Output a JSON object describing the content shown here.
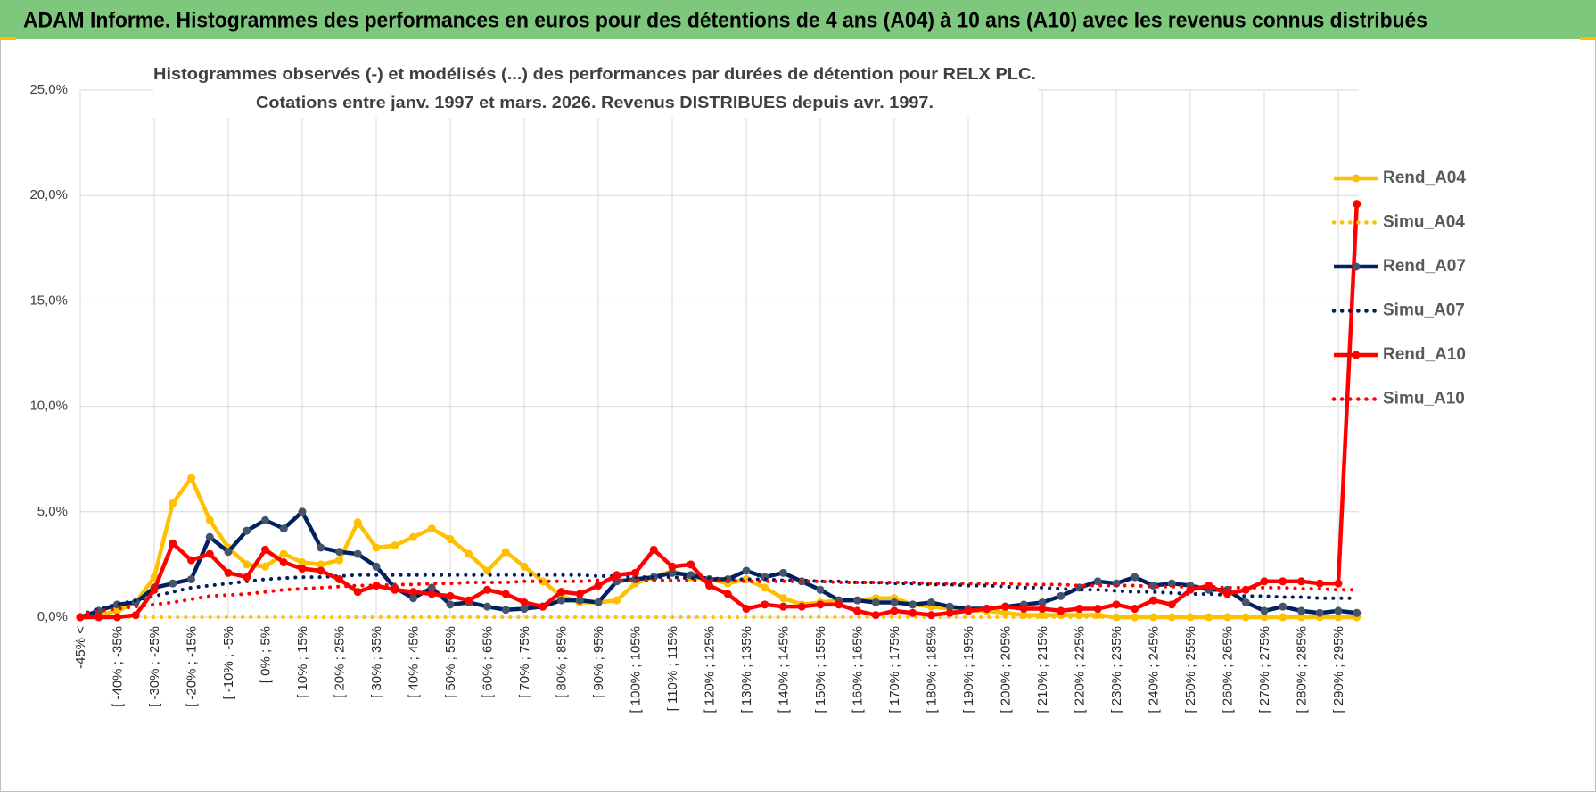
{
  "header": {
    "title": "ADAM Informe. Histogrammes des performances en euros pour des détentions de 4 ans (A04) à 10 ans (A10) avec les revenus connus distribués"
  },
  "chart_data": {
    "type": "line",
    "title": "Histogrammes observés (-) et modélisés (...) des performances par durées de détention pour RELX PLC.",
    "subtitle": "Cotations entre janv. 1997 et mars. 2026. Revenus DISTRIBUES depuis avr. 1997.",
    "categories": [
      "-45% <",
      null,
      "[ -40% ; -35%",
      null,
      "[ -30% ; -25%",
      null,
      "[ -20% ; -15%",
      null,
      "[ -10% ; -5%",
      null,
      "[ 0% ; 5%",
      null,
      "[ 10% ; 15%",
      null,
      "[ 20% ; 25%",
      null,
      "[ 30% ; 35%",
      null,
      "[ 40% ; 45%",
      null,
      "[ 50% ; 55%",
      null,
      "[ 60% ; 65%",
      null,
      "[ 70% ; 75%",
      null,
      "[ 80% ; 85%",
      null,
      "[ 90% ; 95%",
      null,
      "[ 100% ; 105%",
      null,
      "[ 110% ; 115%",
      null,
      "[ 120% ; 125%",
      null,
      "[ 130% ; 135%",
      null,
      "[ 140% ; 145%",
      null,
      "[ 150% ; 155%",
      null,
      "[ 160% ; 165%",
      null,
      "[ 170% ; 175%",
      null,
      "[ 180% ; 185%",
      null,
      "[ 190% ; 195%",
      null,
      "[ 200% ; 205%",
      null,
      "[ 210% ; 215%",
      null,
      "[ 220% ; 225%",
      null,
      "[ 230% ; 235%",
      null,
      "[ 240% ; 245%",
      null,
      "[ 250% ; 255%",
      null,
      "[ 260% ; 265%",
      null,
      "[ 270% ; 275%",
      null,
      "[ 280% ; 285%",
      null,
      "[ 290% ; 295%",
      null
    ],
    "series": [
      {
        "name": "Rend_A04",
        "color": "#ffc000",
        "style": "solid",
        "marker": true,
        "values": [
          0,
          0.1,
          0.3,
          0.7,
          1.9,
          5.4,
          6.6,
          4.6,
          3.3,
          2.5,
          2.4,
          3.0,
          2.6,
          2.5,
          2.7,
          4.5,
          3.3,
          3.4,
          3.8,
          4.2,
          3.7,
          3.0,
          2.2,
          3.1,
          2.4,
          1.7,
          1.0,
          0.7,
          0.7,
          0.8,
          1.6,
          1.9,
          2.2,
          1.9,
          1.8,
          1.6,
          1.8,
          1.4,
          0.9,
          0.6,
          0.7,
          0.8,
          0.8,
          0.9,
          0.9,
          0.6,
          0.5,
          0.4,
          0.3,
          0.3,
          0.2,
          0.1,
          0.1,
          0.1,
          0.1,
          0.1,
          0,
          0,
          0,
          0,
          0,
          0,
          0,
          0,
          0,
          0,
          0,
          0,
          0,
          0
        ]
      },
      {
        "name": "Simu_A04",
        "color": "#ffc000",
        "style": "dotted",
        "marker": false,
        "values": [
          0,
          0,
          0,
          0,
          0,
          0,
          0,
          0,
          0,
          0,
          0,
          0,
          0,
          0,
          0,
          0,
          0,
          0,
          0,
          0,
          0,
          0,
          0,
          0,
          0,
          0,
          0,
          0,
          0,
          0,
          0,
          0,
          0,
          0,
          0,
          0,
          0,
          0,
          0,
          0,
          0,
          0,
          0,
          0,
          0,
          0,
          0,
          0,
          0,
          0,
          0,
          0,
          0,
          0,
          0,
          0,
          0,
          0,
          0,
          0,
          0,
          0,
          0,
          0,
          0,
          0,
          0,
          0,
          0,
          0
        ]
      },
      {
        "name": "Rend_A07",
        "color": "#002060",
        "style": "solid",
        "marker": true,
        "values": [
          0,
          0.3,
          0.6,
          0.7,
          1.4,
          1.6,
          1.8,
          3.8,
          3.1,
          4.1,
          4.6,
          4.2,
          5.0,
          3.3,
          3.1,
          3.0,
          2.4,
          1.4,
          0.9,
          1.4,
          0.6,
          0.7,
          0.5,
          0.35,
          0.4,
          0.5,
          0.8,
          0.8,
          0.7,
          1.7,
          1.8,
          1.9,
          2.1,
          2.0,
          1.8,
          1.8,
          2.2,
          1.9,
          2.1,
          1.7,
          1.3,
          0.8,
          0.8,
          0.7,
          0.7,
          0.6,
          0.7,
          0.5,
          0.4,
          0.4,
          0.5,
          0.6,
          0.7,
          1.0,
          1.4,
          1.7,
          1.6,
          1.9,
          1.5,
          1.6,
          1.5,
          1.3,
          1.3,
          0.7,
          0.3,
          0.5,
          0.3,
          0.2,
          0.3,
          0.2
        ]
      },
      {
        "name": "Simu_A07",
        "color": "#002060",
        "style": "dotted",
        "marker": false,
        "values": [
          0.1,
          0.4,
          0.6,
          0.8,
          1.0,
          1.2,
          1.4,
          1.5,
          1.6,
          1.7,
          1.8,
          1.85,
          1.9,
          1.9,
          1.95,
          2.0,
          2.0,
          2.0,
          2.0,
          2.0,
          2.0,
          2.0,
          2.0,
          2.0,
          2.0,
          2.0,
          2.0,
          2.0,
          1.95,
          1.95,
          1.9,
          1.9,
          1.9,
          1.85,
          1.85,
          1.8,
          1.8,
          1.8,
          1.75,
          1.75,
          1.7,
          1.7,
          1.65,
          1.65,
          1.6,
          1.6,
          1.55,
          1.55,
          1.5,
          1.5,
          1.45,
          1.4,
          1.4,
          1.35,
          1.3,
          1.3,
          1.25,
          1.2,
          1.2,
          1.15,
          1.1,
          1.1,
          1.05,
          1.0,
          1.0,
          0.95,
          0.95,
          0.9,
          0.9,
          0.9
        ]
      },
      {
        "name": "Rend_A10",
        "color": "#ff0000",
        "style": "solid",
        "marker": true,
        "values": [
          0,
          0,
          0,
          0.1,
          1.3,
          3.5,
          2.7,
          3.0,
          2.1,
          1.9,
          3.2,
          2.6,
          2.3,
          2.2,
          1.8,
          1.2,
          1.5,
          1.3,
          1.2,
          1.1,
          1.0,
          0.8,
          1.3,
          1.1,
          0.7,
          0.5,
          1.2,
          1.1,
          1.5,
          2.0,
          2.1,
          3.2,
          2.4,
          2.5,
          1.5,
          1.1,
          0.4,
          0.6,
          0.5,
          0.5,
          0.6,
          0.6,
          0.3,
          0.1,
          0.3,
          0.2,
          0.1,
          0.2,
          0.3,
          0.4,
          0.5,
          0.4,
          0.4,
          0.3,
          0.4,
          0.4,
          0.6,
          0.4,
          0.8,
          0.6,
          1.3,
          1.5,
          1.1,
          1.3,
          1.7,
          1.7,
          1.7,
          1.6,
          1.6,
          19.6
        ]
      },
      {
        "name": "Simu_A10",
        "color": "#ff0000",
        "style": "dotted",
        "marker": false,
        "values": [
          0.1,
          0.3,
          0.4,
          0.5,
          0.6,
          0.7,
          0.85,
          1.0,
          1.05,
          1.1,
          1.2,
          1.3,
          1.35,
          1.4,
          1.45,
          1.5,
          1.5,
          1.55,
          1.55,
          1.6,
          1.6,
          1.65,
          1.65,
          1.65,
          1.7,
          1.7,
          1.7,
          1.7,
          1.75,
          1.75,
          1.75,
          1.75,
          1.75,
          1.75,
          1.75,
          1.75,
          1.7,
          1.7,
          1.7,
          1.7,
          1.7,
          1.65,
          1.65,
          1.65,
          1.65,
          1.65,
          1.6,
          1.6,
          1.6,
          1.6,
          1.6,
          1.55,
          1.55,
          1.55,
          1.5,
          1.5,
          1.5,
          1.5,
          1.45,
          1.45,
          1.45,
          1.45,
          1.4,
          1.4,
          1.4,
          1.4,
          1.35,
          1.35,
          1.3,
          1.3
        ]
      }
    ],
    "ylim": [
      0,
      25
    ],
    "yticks": [
      {
        "value": 0,
        "label": "0,0%"
      },
      {
        "value": 5,
        "label": "5,0%"
      },
      {
        "value": 10,
        "label": "10,0%"
      },
      {
        "value": 15,
        "label": "15,0%"
      },
      {
        "value": 20,
        "label": "20,0%"
      },
      {
        "value": 25,
        "label": "25,0%"
      }
    ],
    "grid": true,
    "legend": "right"
  }
}
